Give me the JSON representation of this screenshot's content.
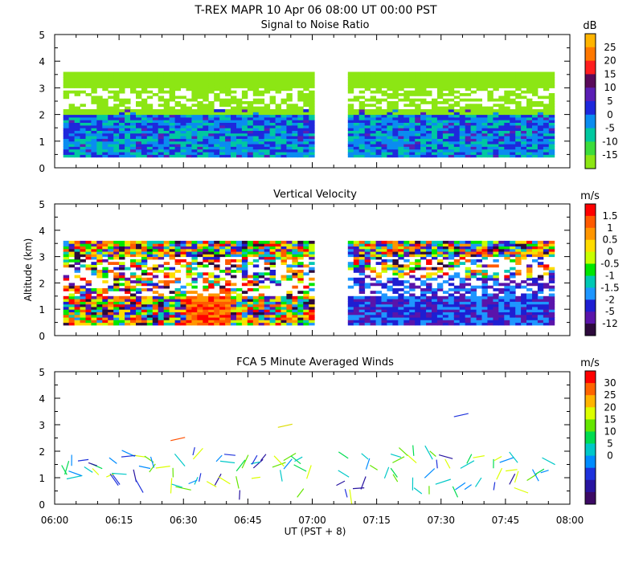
{
  "title": "T-REX  MAPR 10 Apr 06  08:00 UT  00:00  PST",
  "xlabel": "UT  (PST + 8)",
  "ylabel": "Altitude (km)",
  "x_ticks": [
    "06:00",
    "06:15",
    "06:30",
    "06:45",
    "07:00",
    "07:15",
    "07:30",
    "07:45",
    "08:00"
  ],
  "y_ticks": [
    "0",
    "1",
    "2",
    "3",
    "4",
    "5"
  ],
  "chart_data": [
    {
      "type": "heatmap",
      "title": "Signal to Noise Ratio",
      "units": "dB",
      "xlim": [
        "06:00",
        "08:00"
      ],
      "ylim": [
        0,
        5
      ],
      "colorbar_ticks": [
        "25",
        "20",
        "15",
        "10",
        "5",
        "0",
        "-5",
        "-10",
        "-15"
      ],
      "colorbar_colors": [
        "#ffb400",
        "#ff7800",
        "#ff1e1e",
        "#5a0a5a",
        "#5a1eb4",
        "#1e28dc",
        "#0a8cf0",
        "#00c8a0",
        "#3cdc3c",
        "#8ce614"
      ],
      "data_gap": [
        "07:00",
        "07:07"
      ],
      "top_of_data_km": 3.6,
      "bottom_of_data_km": 0.4
    },
    {
      "type": "heatmap",
      "title": "Vertical Velocity",
      "units": "m/s",
      "xlim": [
        "06:00",
        "08:00"
      ],
      "ylim": [
        0,
        5
      ],
      "colorbar_ticks": [
        "1.5",
        "1",
        "0.5",
        "0",
        "-0.5",
        "-1",
        "-1.5",
        "-2",
        "-5",
        "-12"
      ],
      "colorbar_colors": [
        "#ff0000",
        "#ff5a00",
        "#ff9600",
        "#ffdc00",
        "#c8ff00",
        "#00e600",
        "#00c8b4",
        "#1e96ff",
        "#1e1ed2",
        "#5a14aa",
        "#2d0a3c"
      ],
      "data_gap": [
        "07:00",
        "07:07"
      ],
      "top_of_data_km": 3.6,
      "bottom_of_data_km": 0.4
    },
    {
      "type": "scatter",
      "title": "FCA 5 Minute Averaged Winds",
      "units": "m/s",
      "xlim": [
        "06:00",
        "08:00"
      ],
      "ylim": [
        0,
        5
      ],
      "colorbar_ticks": [
        "30",
        "25",
        "20",
        "15",
        "10",
        "5",
        "0"
      ],
      "colorbar_colors": [
        "#ff0000",
        "#ff6400",
        "#ffb400",
        "#dcff00",
        "#64e600",
        "#00dc50",
        "#00c8c8",
        "#008cff",
        "#1e32dc",
        "#2814a0",
        "#3c0a64"
      ],
      "wind_barbs_note": "wind barbs every 5 minutes, 0.5-2 km, plus sparse upper-level barbs"
    }
  ]
}
